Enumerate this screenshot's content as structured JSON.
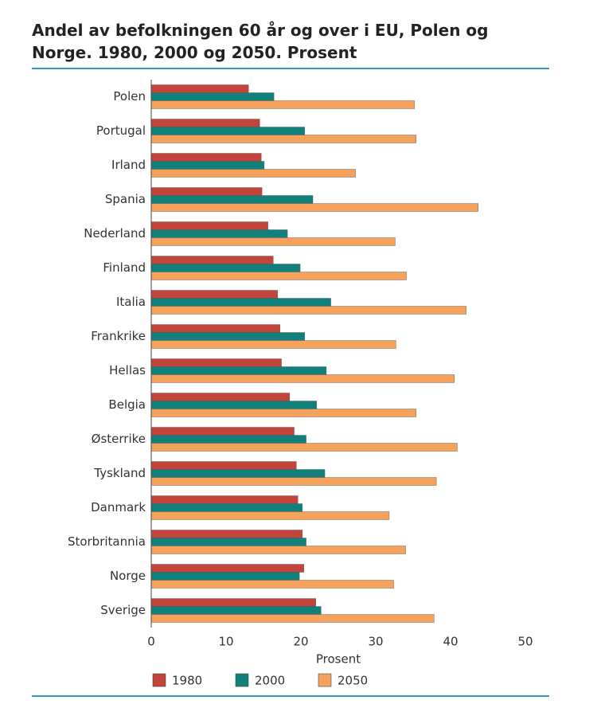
{
  "chart_data": {
    "type": "bar",
    "orientation": "horizontal",
    "title": "Andel av befolkningen 60 år og over i EU, Polen og Norge. 1980, 2000 og 2050. Prosent",
    "x_label": "Prosent",
    "categories": [
      "Polen",
      "Portugal",
      "Irland",
      "Spania",
      "Nederland",
      "Finland",
      "Italia",
      "Frankrike",
      "Hellas",
      "Belgia",
      "Østerrike",
      "Tyskland",
      "Danmark",
      "Storbritannia",
      "Norge",
      "Sverige"
    ],
    "series": [
      {
        "name": "1980",
        "color": "#c2443a",
        "values": [
          13.0,
          14.5,
          14.7,
          14.8,
          15.6,
          16.3,
          16.9,
          17.2,
          17.4,
          18.5,
          19.1,
          19.4,
          19.6,
          20.2,
          20.4,
          22.0
        ]
      },
      {
        "name": "2000",
        "color": "#10807a",
        "values": [
          16.4,
          20.5,
          15.1,
          21.6,
          18.2,
          19.9,
          24.0,
          20.5,
          23.4,
          22.1,
          20.7,
          23.2,
          20.2,
          20.7,
          19.8,
          22.7
        ]
      },
      {
        "name": "2050",
        "color": "#f5a25c",
        "values": [
          35.2,
          35.4,
          27.3,
          43.7,
          32.6,
          34.1,
          42.1,
          32.7,
          40.5,
          35.4,
          40.9,
          38.1,
          31.8,
          34.0,
          32.4,
          37.8
        ]
      }
    ],
    "xlim": [
      0,
      50
    ],
    "xticks": [
      0,
      10,
      20,
      30,
      40,
      50
    ],
    "grid": false
  }
}
